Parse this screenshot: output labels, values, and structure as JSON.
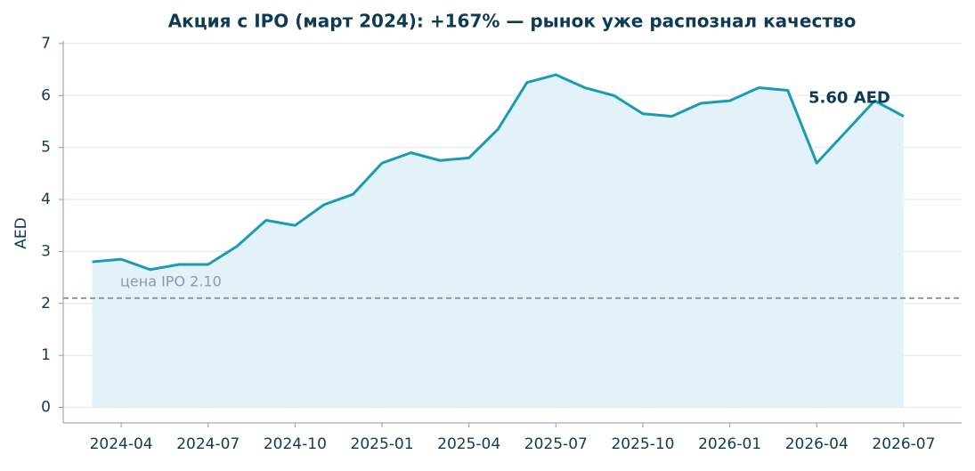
{
  "chart_data": {
    "type": "line",
    "title": "Акция с IPO (март 2024): +167% — рынок уже распознал качество",
    "y_label": "AED",
    "x": [
      "2024-03",
      "2024-04",
      "2024-05",
      "2024-06",
      "2024-07",
      "2024-08",
      "2024-09",
      "2024-10",
      "2024-11",
      "2024-12",
      "2025-01",
      "2025-02",
      "2025-03",
      "2025-04",
      "2025-05",
      "2025-06",
      "2025-07",
      "2025-08",
      "2025-09",
      "2025-10",
      "2025-11",
      "2025-12",
      "2026-01",
      "2026-02",
      "2026-03",
      "2026-04",
      "2026-05",
      "2026-06",
      "2026-07"
    ],
    "values": [
      2.8,
      2.85,
      2.65,
      2.75,
      2.75,
      3.1,
      3.6,
      3.5,
      3.9,
      4.1,
      4.7,
      4.9,
      4.75,
      4.8,
      5.35,
      6.25,
      6.4,
      6.15,
      6.0,
      5.65,
      5.6,
      5.85,
      5.9,
      6.15,
      6.1,
      4.7,
      5.3,
      5.9,
      5.6
    ],
    "color": "#1a9bb5",
    "fill_color": "#e3f2f8",
    "xlim": [
      "2024-02",
      "2026-09"
    ],
    "xticks": [
      "2024-04",
      "2024-07",
      "2024-10",
      "2025-01",
      "2025-04",
      "2025-07",
      "2025-10",
      "2026-01",
      "2026-04",
      "2026-07"
    ],
    "ylim": [
      -0.3,
      7.05
    ],
    "yticks": [
      0,
      1,
      2,
      3,
      4,
      5,
      6,
      7
    ],
    "grid": true,
    "ipo_line": {
      "value": 2.1,
      "label": "цена IPO 2.10"
    },
    "last_label": {
      "value": 5.6,
      "label": "5.60 AED"
    }
  }
}
